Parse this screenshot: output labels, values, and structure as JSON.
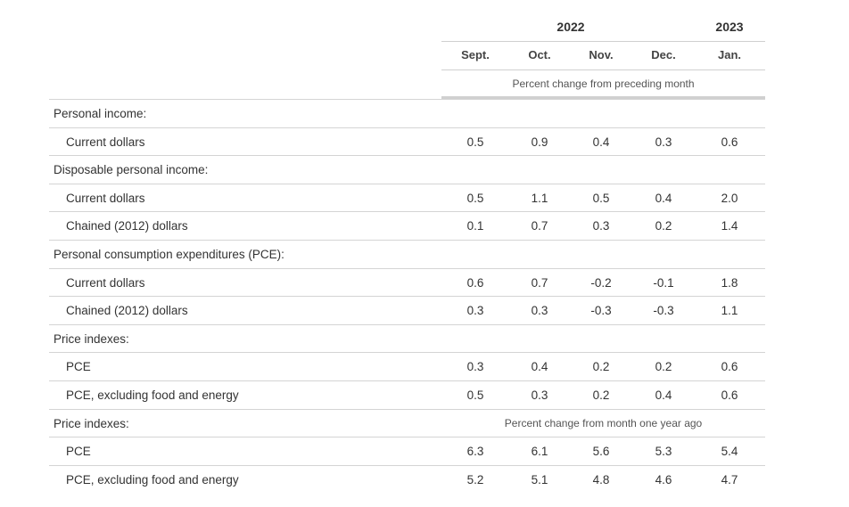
{
  "header": {
    "year_2022": "2022",
    "year_2023": "2023",
    "months": [
      "Sept.",
      "Oct.",
      "Nov.",
      "Dec.",
      "Jan."
    ],
    "note_monthly": "Percent change from preceding month"
  },
  "rows": [
    {
      "label": "Personal income:",
      "level": 1,
      "values": [
        "",
        "",
        "",
        "",
        ""
      ]
    },
    {
      "label": "Current dollars",
      "level": 2,
      "values": [
        "0.5",
        "0.9",
        "0.4",
        "0.3",
        "0.6"
      ]
    },
    {
      "label": "Disposable personal income:",
      "level": 1,
      "values": [
        "",
        "",
        "",
        "",
        ""
      ]
    },
    {
      "label": "Current dollars",
      "level": 2,
      "values": [
        "0.5",
        "1.1",
        "0.5",
        "0.4",
        "2.0"
      ]
    },
    {
      "label": "Chained (2012) dollars",
      "level": 2,
      "values": [
        "0.1",
        "0.7",
        "0.3",
        "0.2",
        "1.4"
      ]
    },
    {
      "label": "Personal consumption expenditures (PCE):",
      "level": 1,
      "values": [
        "",
        "",
        "",
        "",
        ""
      ]
    },
    {
      "label": "Current dollars",
      "level": 2,
      "values": [
        "0.6",
        "0.7",
        "-0.2",
        "-0.1",
        "1.8"
      ]
    },
    {
      "label": "Chained (2012) dollars",
      "level": 2,
      "values": [
        "0.3",
        "0.3",
        "-0.3",
        "-0.3",
        "1.1"
      ]
    },
    {
      "label": "Price indexes:",
      "level": 1,
      "values": [
        "",
        "",
        "",
        "",
        ""
      ]
    },
    {
      "label": "PCE",
      "level": 2,
      "values": [
        "0.3",
        "0.4",
        "0.2",
        "0.2",
        "0.6"
      ]
    },
    {
      "label": "PCE, excluding food and energy",
      "level": 2,
      "values": [
        "0.5",
        "0.3",
        "0.2",
        "0.4",
        "0.6"
      ]
    },
    {
      "label": "Price indexes:",
      "level": 1,
      "values": [
        "",
        "",
        "",
        "",
        ""
      ],
      "note": "Percent change from month one year ago"
    },
    {
      "label": "PCE",
      "level": 2,
      "values": [
        "6.3",
        "6.1",
        "5.6",
        "5.3",
        "5.4"
      ]
    },
    {
      "label": "PCE, excluding food and energy",
      "level": 2,
      "values": [
        "5.2",
        "5.1",
        "4.8",
        "4.6",
        "4.7"
      ]
    }
  ]
}
